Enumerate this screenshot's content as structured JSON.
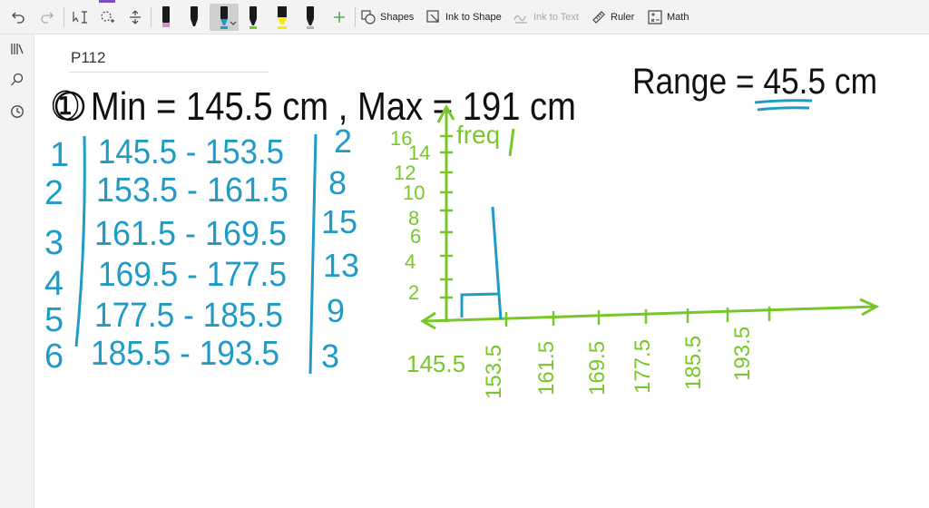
{
  "toolbar": {
    "shapes_label": "Shapes",
    "ink_to_shape_label": "Ink to Shape",
    "ink_to_text_label": "Ink to Text",
    "ruler_label": "Ruler",
    "math_label": "Math"
  },
  "page": {
    "title": "P112"
  },
  "ink": {
    "line1": "① Min = 145.5 cm , Max = 191 cm",
    "range": "Range = 45.5 cm",
    "class_numbers": [
      "1",
      "2",
      "3",
      "4",
      "5",
      "6"
    ],
    "intervals": [
      "145.5 - 153.5",
      "153.5 - 161.5",
      "161.5 - 169.5",
      "169.5 - 177.5",
      "177.5 - 185.5",
      "185.5 - 193.5"
    ],
    "frequencies": [
      "2",
      "8",
      "15",
      "13",
      "9",
      "3"
    ],
    "y_axis_label": "freq",
    "y_ticks": [
      "16",
      "14",
      "12",
      "10",
      "8",
      "6",
      "4",
      "2"
    ],
    "x_ticks": [
      "145.5",
      "153.5",
      "161.5",
      "169.5",
      "177.5",
      "185.5",
      "193.5"
    ]
  },
  "colors": {
    "blue_ink": "#1f9bc6",
    "green_ink": "#78c72a",
    "accent_purple": "#7b4fbd"
  }
}
